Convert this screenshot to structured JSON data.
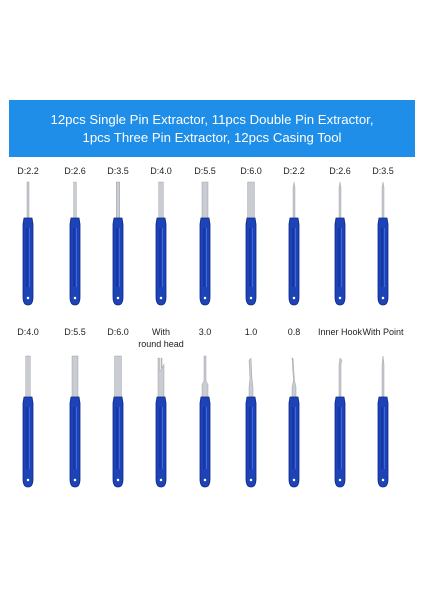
{
  "banner": {
    "line1": "12pcs Single Pin Extractor, 11pcs Double Pin Extractor,",
    "line2": "1pcs Three Pin Extractor, 12pcs Casing Tool"
  },
  "row1": [
    {
      "label": "D:2.2",
      "tip": "pin-2.2"
    },
    {
      "label": "D:2.6",
      "tip": "pin-2.6"
    },
    {
      "label": "D:3.5",
      "tip": "pin-3.5"
    },
    {
      "label": "D:4.0",
      "tip": "pin-4.0"
    },
    {
      "label": "D:5.5",
      "tip": "pin-5.5"
    },
    {
      "label": "D:6.0",
      "tip": "pin-6.0"
    },
    {
      "label": "D:2.2",
      "tip": "needle"
    },
    {
      "label": "D:2.6",
      "tip": "needle"
    },
    {
      "label": "D:3.5",
      "tip": "needle"
    }
  ],
  "row2": [
    {
      "label": "D:4.0",
      "tip": "pin-4.0"
    },
    {
      "label": "D:5.5",
      "tip": "pin-5.5"
    },
    {
      "label": "D:6.0",
      "tip": "pin-6.0"
    },
    {
      "label": "With",
      "label2": "round head",
      "tip": "forked"
    },
    {
      "label": "3.0",
      "tip": "flat-3.0"
    },
    {
      "label": "1.0",
      "tip": "angled"
    },
    {
      "label": "0.8",
      "tip": "angled-fine"
    },
    {
      "label": "Inner Hook",
      "tip": "hook"
    },
    {
      "label": "With Point",
      "tip": "point"
    }
  ],
  "colors": {
    "banner": "#1f8ee8",
    "handle": "#1d43b8",
    "handle_dark": "#102a85",
    "metal": "#c9ccd2"
  }
}
